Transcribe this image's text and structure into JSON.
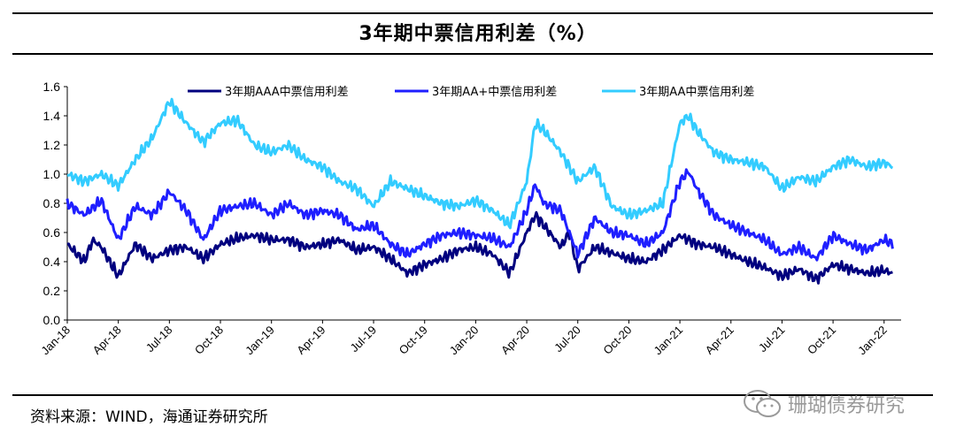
{
  "title": "3年期中票信用利差（%）",
  "source": "资料来源：WIND，海通证券研究所",
  "watermark": "珊瑚债券研究",
  "chart_data": {
    "type": "line",
    "title": "3年期中票信用利差（%）",
    "xlabel": "",
    "ylabel": "",
    "ylim": [
      0.0,
      1.6
    ],
    "yticks": [
      "0.0",
      "0.2",
      "0.4",
      "0.6",
      "0.8",
      "1.0",
      "1.2",
      "1.4",
      "1.6"
    ],
    "xlim": [
      0,
      49
    ],
    "xticks": [
      {
        "label": "Jan-18",
        "x": 0
      },
      {
        "label": "Apr-18",
        "x": 3
      },
      {
        "label": "Jul-18",
        "x": 6
      },
      {
        "label": "Oct-18",
        "x": 9
      },
      {
        "label": "Jan-19",
        "x": 12
      },
      {
        "label": "Apr-19",
        "x": 15
      },
      {
        "label": "Jul-19",
        "x": 18
      },
      {
        "label": "Oct-19",
        "x": 21
      },
      {
        "label": "Jan-20",
        "x": 24
      },
      {
        "label": "Apr-20",
        "x": 27
      },
      {
        "label": "Jul-20",
        "x": 30
      },
      {
        "label": "Oct-20",
        "x": 33
      },
      {
        "label": "Jan-21",
        "x": 36
      },
      {
        "label": "Apr-21",
        "x": 39
      },
      {
        "label": "Jul-21",
        "x": 42
      },
      {
        "label": "Oct-21",
        "x": 45
      },
      {
        "label": "Jan-22",
        "x": 48
      }
    ],
    "grid": false,
    "legend_position": "top",
    "series": [
      {
        "name": "3年期AAA中票信用利差",
        "color": "#00007f",
        "points": [
          [
            0,
            0.52
          ],
          [
            1,
            0.4
          ],
          [
            1.5,
            0.55
          ],
          [
            2,
            0.5
          ],
          [
            3,
            0.3
          ],
          [
            4,
            0.52
          ],
          [
            5,
            0.42
          ],
          [
            6,
            0.48
          ],
          [
            7,
            0.5
          ],
          [
            8,
            0.42
          ],
          [
            9,
            0.52
          ],
          [
            10,
            0.56
          ],
          [
            11,
            0.58
          ],
          [
            12,
            0.55
          ],
          [
            13,
            0.55
          ],
          [
            14,
            0.5
          ],
          [
            15,
            0.52
          ],
          [
            16,
            0.55
          ],
          [
            17,
            0.48
          ],
          [
            18,
            0.5
          ],
          [
            19,
            0.42
          ],
          [
            20,
            0.32
          ],
          [
            21,
            0.38
          ],
          [
            22,
            0.42
          ],
          [
            23,
            0.48
          ],
          [
            24,
            0.5
          ],
          [
            25,
            0.45
          ],
          [
            26,
            0.32
          ],
          [
            27,
            0.6
          ],
          [
            27.5,
            0.72
          ],
          [
            28,
            0.65
          ],
          [
            29,
            0.5
          ],
          [
            29.5,
            0.6
          ],
          [
            30,
            0.35
          ],
          [
            31,
            0.5
          ],
          [
            32,
            0.46
          ],
          [
            33,
            0.42
          ],
          [
            34,
            0.4
          ],
          [
            35,
            0.48
          ],
          [
            36,
            0.58
          ],
          [
            37,
            0.52
          ],
          [
            38,
            0.5
          ],
          [
            39,
            0.45
          ],
          [
            40,
            0.4
          ],
          [
            41,
            0.36
          ],
          [
            42,
            0.3
          ],
          [
            43,
            0.35
          ],
          [
            44,
            0.28
          ],
          [
            45,
            0.38
          ],
          [
            46,
            0.35
          ],
          [
            47,
            0.32
          ],
          [
            48,
            0.34
          ],
          [
            48.5,
            0.32
          ]
        ]
      },
      {
        "name": "3年期AA+中票信用利差",
        "color": "#1f1fff",
        "points": [
          [
            0,
            0.8
          ],
          [
            1,
            0.72
          ],
          [
            2,
            0.82
          ],
          [
            3,
            0.55
          ],
          [
            4,
            0.78
          ],
          [
            5,
            0.72
          ],
          [
            6,
            0.88
          ],
          [
            7,
            0.75
          ],
          [
            8,
            0.55
          ],
          [
            9,
            0.75
          ],
          [
            10,
            0.78
          ],
          [
            11,
            0.8
          ],
          [
            12,
            0.72
          ],
          [
            13,
            0.8
          ],
          [
            14,
            0.72
          ],
          [
            15,
            0.75
          ],
          [
            16,
            0.72
          ],
          [
            17,
            0.62
          ],
          [
            18,
            0.65
          ],
          [
            19,
            0.52
          ],
          [
            20,
            0.45
          ],
          [
            21,
            0.52
          ],
          [
            22,
            0.58
          ],
          [
            23,
            0.6
          ],
          [
            24,
            0.58
          ],
          [
            25,
            0.56
          ],
          [
            26,
            0.5
          ],
          [
            27,
            0.75
          ],
          [
            27.5,
            0.93
          ],
          [
            28,
            0.8
          ],
          [
            29,
            0.75
          ],
          [
            30,
            0.45
          ],
          [
            31,
            0.7
          ],
          [
            32,
            0.6
          ],
          [
            33,
            0.58
          ],
          [
            34,
            0.52
          ],
          [
            35,
            0.6
          ],
          [
            36,
            0.95
          ],
          [
            36.5,
            1.02
          ],
          [
            37,
            0.9
          ],
          [
            38,
            0.72
          ],
          [
            39,
            0.65
          ],
          [
            40,
            0.6
          ],
          [
            41,
            0.55
          ],
          [
            42,
            0.45
          ],
          [
            43,
            0.5
          ],
          [
            44,
            0.42
          ],
          [
            45,
            0.58
          ],
          [
            46,
            0.52
          ],
          [
            47,
            0.48
          ],
          [
            48,
            0.55
          ],
          [
            48.5,
            0.52
          ]
        ]
      },
      {
        "name": "3年期AA中票信用利差",
        "color": "#33ccff",
        "points": [
          [
            0,
            1.0
          ],
          [
            1,
            0.95
          ],
          [
            2,
            1.0
          ],
          [
            3,
            0.92
          ],
          [
            4,
            1.1
          ],
          [
            5,
            1.25
          ],
          [
            6,
            1.5
          ],
          [
            7,
            1.35
          ],
          [
            8,
            1.22
          ],
          [
            9,
            1.35
          ],
          [
            10,
            1.37
          ],
          [
            11,
            1.2
          ],
          [
            12,
            1.15
          ],
          [
            13,
            1.2
          ],
          [
            14,
            1.1
          ],
          [
            15,
            1.05
          ],
          [
            16,
            0.95
          ],
          [
            17,
            0.9
          ],
          [
            18,
            0.78
          ],
          [
            19,
            0.95
          ],
          [
            20,
            0.9
          ],
          [
            21,
            0.85
          ],
          [
            22,
            0.8
          ],
          [
            23,
            0.78
          ],
          [
            24,
            0.82
          ],
          [
            25,
            0.75
          ],
          [
            26,
            0.65
          ],
          [
            27,
            0.95
          ],
          [
            27.5,
            1.35
          ],
          [
            28,
            1.3
          ],
          [
            29,
            1.15
          ],
          [
            30,
            0.95
          ],
          [
            31,
            1.05
          ],
          [
            32,
            0.78
          ],
          [
            33,
            0.72
          ],
          [
            34,
            0.75
          ],
          [
            35,
            0.8
          ],
          [
            36,
            1.35
          ],
          [
            36.5,
            1.4
          ],
          [
            37,
            1.3
          ],
          [
            38,
            1.15
          ],
          [
            39,
            1.1
          ],
          [
            40,
            1.08
          ],
          [
            41,
            1.05
          ],
          [
            42,
            0.9
          ],
          [
            43,
            0.98
          ],
          [
            44,
            0.95
          ],
          [
            45,
            1.05
          ],
          [
            46,
            1.1
          ],
          [
            47,
            1.05
          ],
          [
            48,
            1.08
          ],
          [
            48.5,
            1.05
          ]
        ]
      }
    ]
  }
}
